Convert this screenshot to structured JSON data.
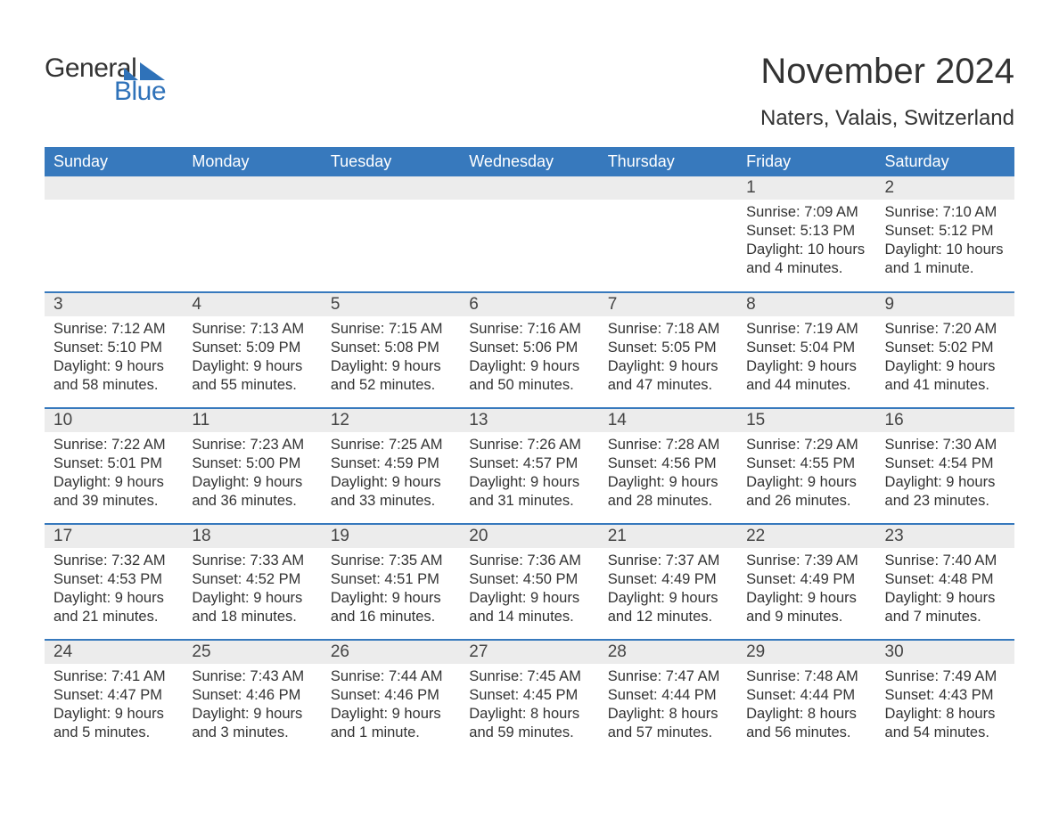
{
  "brand": {
    "word1": "General",
    "word2": "Blue",
    "accent_color": "#2f72b9"
  },
  "title": "November 2024",
  "location": "Naters, Valais, Switzerland",
  "header_bg": "#3779bd",
  "daynum_bg": "#ececec",
  "columns": [
    "Sunday",
    "Monday",
    "Tuesday",
    "Wednesday",
    "Thursday",
    "Friday",
    "Saturday"
  ],
  "weeks": [
    [
      null,
      null,
      null,
      null,
      null,
      {
        "n": "1",
        "sunrise": "Sunrise: 7:09 AM",
        "sunset": "Sunset: 5:13 PM",
        "daylight": "Daylight: 10 hours and 4 minutes."
      },
      {
        "n": "2",
        "sunrise": "Sunrise: 7:10 AM",
        "sunset": "Sunset: 5:12 PM",
        "daylight": "Daylight: 10 hours and 1 minute."
      }
    ],
    [
      {
        "n": "3",
        "sunrise": "Sunrise: 7:12 AM",
        "sunset": "Sunset: 5:10 PM",
        "daylight": "Daylight: 9 hours and 58 minutes."
      },
      {
        "n": "4",
        "sunrise": "Sunrise: 7:13 AM",
        "sunset": "Sunset: 5:09 PM",
        "daylight": "Daylight: 9 hours and 55 minutes."
      },
      {
        "n": "5",
        "sunrise": "Sunrise: 7:15 AM",
        "sunset": "Sunset: 5:08 PM",
        "daylight": "Daylight: 9 hours and 52 minutes."
      },
      {
        "n": "6",
        "sunrise": "Sunrise: 7:16 AM",
        "sunset": "Sunset: 5:06 PM",
        "daylight": "Daylight: 9 hours and 50 minutes."
      },
      {
        "n": "7",
        "sunrise": "Sunrise: 7:18 AM",
        "sunset": "Sunset: 5:05 PM",
        "daylight": "Daylight: 9 hours and 47 minutes."
      },
      {
        "n": "8",
        "sunrise": "Sunrise: 7:19 AM",
        "sunset": "Sunset: 5:04 PM",
        "daylight": "Daylight: 9 hours and 44 minutes."
      },
      {
        "n": "9",
        "sunrise": "Sunrise: 7:20 AM",
        "sunset": "Sunset: 5:02 PM",
        "daylight": "Daylight: 9 hours and 41 minutes."
      }
    ],
    [
      {
        "n": "10",
        "sunrise": "Sunrise: 7:22 AM",
        "sunset": "Sunset: 5:01 PM",
        "daylight": "Daylight: 9 hours and 39 minutes."
      },
      {
        "n": "11",
        "sunrise": "Sunrise: 7:23 AM",
        "sunset": "Sunset: 5:00 PM",
        "daylight": "Daylight: 9 hours and 36 minutes."
      },
      {
        "n": "12",
        "sunrise": "Sunrise: 7:25 AM",
        "sunset": "Sunset: 4:59 PM",
        "daylight": "Daylight: 9 hours and 33 minutes."
      },
      {
        "n": "13",
        "sunrise": "Sunrise: 7:26 AM",
        "sunset": "Sunset: 4:57 PM",
        "daylight": "Daylight: 9 hours and 31 minutes."
      },
      {
        "n": "14",
        "sunrise": "Sunrise: 7:28 AM",
        "sunset": "Sunset: 4:56 PM",
        "daylight": "Daylight: 9 hours and 28 minutes."
      },
      {
        "n": "15",
        "sunrise": "Sunrise: 7:29 AM",
        "sunset": "Sunset: 4:55 PM",
        "daylight": "Daylight: 9 hours and 26 minutes."
      },
      {
        "n": "16",
        "sunrise": "Sunrise: 7:30 AM",
        "sunset": "Sunset: 4:54 PM",
        "daylight": "Daylight: 9 hours and 23 minutes."
      }
    ],
    [
      {
        "n": "17",
        "sunrise": "Sunrise: 7:32 AM",
        "sunset": "Sunset: 4:53 PM",
        "daylight": "Daylight: 9 hours and 21 minutes."
      },
      {
        "n": "18",
        "sunrise": "Sunrise: 7:33 AM",
        "sunset": "Sunset: 4:52 PM",
        "daylight": "Daylight: 9 hours and 18 minutes."
      },
      {
        "n": "19",
        "sunrise": "Sunrise: 7:35 AM",
        "sunset": "Sunset: 4:51 PM",
        "daylight": "Daylight: 9 hours and 16 minutes."
      },
      {
        "n": "20",
        "sunrise": "Sunrise: 7:36 AM",
        "sunset": "Sunset: 4:50 PM",
        "daylight": "Daylight: 9 hours and 14 minutes."
      },
      {
        "n": "21",
        "sunrise": "Sunrise: 7:37 AM",
        "sunset": "Sunset: 4:49 PM",
        "daylight": "Daylight: 9 hours and 12 minutes."
      },
      {
        "n": "22",
        "sunrise": "Sunrise: 7:39 AM",
        "sunset": "Sunset: 4:49 PM",
        "daylight": "Daylight: 9 hours and 9 minutes."
      },
      {
        "n": "23",
        "sunrise": "Sunrise: 7:40 AM",
        "sunset": "Sunset: 4:48 PM",
        "daylight": "Daylight: 9 hours and 7 minutes."
      }
    ],
    [
      {
        "n": "24",
        "sunrise": "Sunrise: 7:41 AM",
        "sunset": "Sunset: 4:47 PM",
        "daylight": "Daylight: 9 hours and 5 minutes."
      },
      {
        "n": "25",
        "sunrise": "Sunrise: 7:43 AM",
        "sunset": "Sunset: 4:46 PM",
        "daylight": "Daylight: 9 hours and 3 minutes."
      },
      {
        "n": "26",
        "sunrise": "Sunrise: 7:44 AM",
        "sunset": "Sunset: 4:46 PM",
        "daylight": "Daylight: 9 hours and 1 minute."
      },
      {
        "n": "27",
        "sunrise": "Sunrise: 7:45 AM",
        "sunset": "Sunset: 4:45 PM",
        "daylight": "Daylight: 8 hours and 59 minutes."
      },
      {
        "n": "28",
        "sunrise": "Sunrise: 7:47 AM",
        "sunset": "Sunset: 4:44 PM",
        "daylight": "Daylight: 8 hours and 57 minutes."
      },
      {
        "n": "29",
        "sunrise": "Sunrise: 7:48 AM",
        "sunset": "Sunset: 4:44 PM",
        "daylight": "Daylight: 8 hours and 56 minutes."
      },
      {
        "n": "30",
        "sunrise": "Sunrise: 7:49 AM",
        "sunset": "Sunset: 4:43 PM",
        "daylight": "Daylight: 8 hours and 54 minutes."
      }
    ]
  ]
}
